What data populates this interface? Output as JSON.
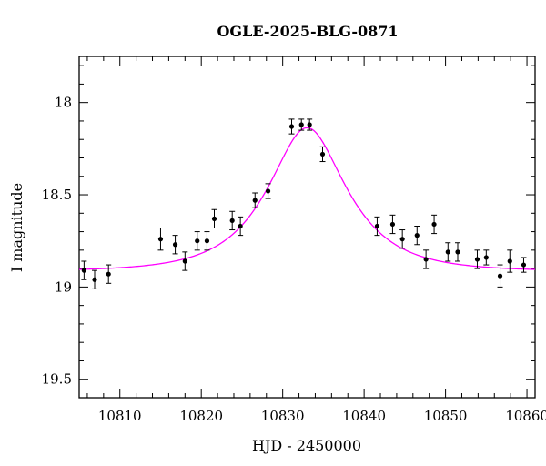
{
  "chart_data": {
    "type": "scatter",
    "title": "OGLE-2025-BLG-0871",
    "xlabel": "HJD - 2450000",
    "ylabel": "I magnitude",
    "xlim": [
      10805,
      10861
    ],
    "ylim": [
      19.6,
      17.75
    ],
    "y_inverted": true,
    "grid": false,
    "xticks": [
      10810,
      10820,
      10830,
      10840,
      10850,
      10860
    ],
    "yticks": [
      18,
      18.5,
      19,
      19.5
    ],
    "xtick_labels": [
      "10810",
      "10820",
      "10830",
      "10840",
      "10850",
      "10860"
    ],
    "ytick_labels": [
      "18",
      "18.5",
      "19",
      "19.5"
    ],
    "colors": {
      "points": "#000000",
      "model": "#ff00ff"
    },
    "series": [
      {
        "kind": "points_with_errorbars",
        "x": [
          10805.6,
          10806.9,
          10808.6,
          10815.0,
          10816.8,
          10818.0,
          10819.5,
          10820.7,
          10821.6,
          10823.8,
          10824.8,
          10826.6,
          10828.2,
          10831.1,
          10832.3,
          10833.3,
          10834.9,
          10841.6,
          10843.5,
          10844.7,
          10846.5,
          10847.6,
          10848.6,
          10850.3,
          10851.5,
          10853.9,
          10855.0,
          10856.7,
          10857.9,
          10859.6
        ],
        "y": [
          18.91,
          18.96,
          18.93,
          18.74,
          18.77,
          18.86,
          18.75,
          18.75,
          18.63,
          18.64,
          18.67,
          18.53,
          18.48,
          18.13,
          18.12,
          18.12,
          18.28,
          18.67,
          18.66,
          18.74,
          18.72,
          18.85,
          18.66,
          18.81,
          18.81,
          18.85,
          18.84,
          18.94,
          18.86,
          18.88
        ],
        "yerr": [
          0.05,
          0.05,
          0.05,
          0.06,
          0.05,
          0.05,
          0.05,
          0.05,
          0.05,
          0.05,
          0.05,
          0.04,
          0.04,
          0.04,
          0.03,
          0.03,
          0.04,
          0.05,
          0.05,
          0.05,
          0.05,
          0.05,
          0.05,
          0.05,
          0.05,
          0.05,
          0.04,
          0.06,
          0.06,
          0.04
        ]
      },
      {
        "kind": "model_curve",
        "model": "pspl",
        "params": {
          "t0": 10833.0,
          "u0": 0.54,
          "tE": 8.0,
          "base_mag": 18.915
        }
      }
    ]
  }
}
